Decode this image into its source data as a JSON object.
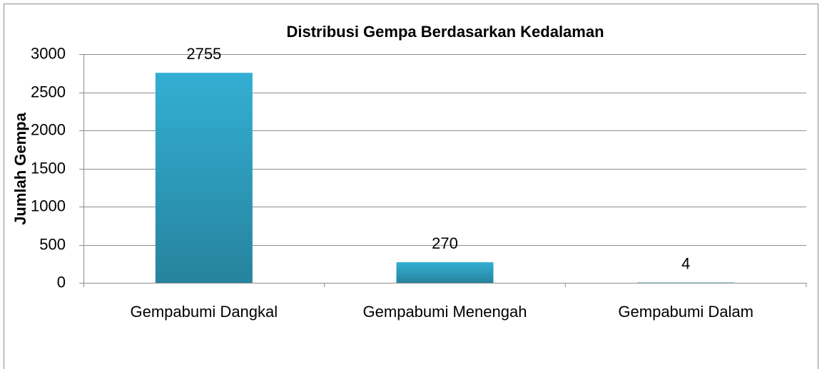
{
  "chart_data": {
    "type": "bar",
    "title": "Distribusi Gempa Berdasarkan Kedalaman",
    "y_label": "Jumlah Gempa",
    "categories": [
      "Gempabumi Dangkal",
      "Gempabumi Menengah",
      "Gempabumi Dalam"
    ],
    "values": [
      2755,
      270,
      4
    ],
    "color": "#33afd3",
    "ylim": [
      0,
      3000
    ],
    "yticks": [
      0,
      500,
      1000,
      1500,
      2000,
      2500,
      3000
    ],
    "grid": true
  }
}
